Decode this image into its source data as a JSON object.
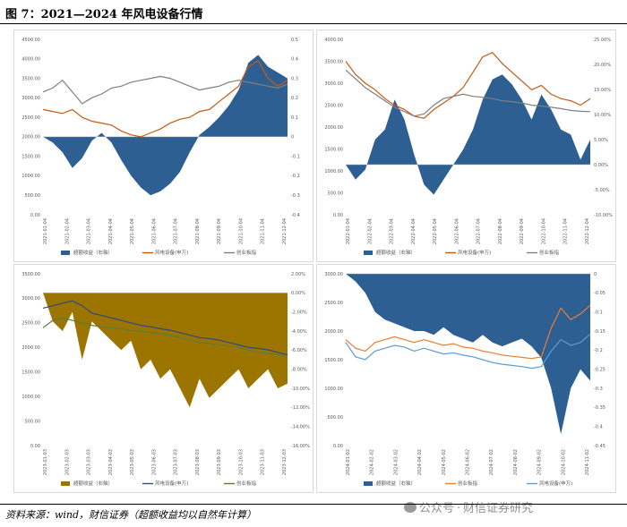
{
  "figure": {
    "title": "图 7：2021—2024 年风电设备行情",
    "source": "资料来源：wind，财信证券（超额收益均以自然年计算）",
    "watermark": {
      "platform": "公众号",
      "separator": "·",
      "name": "财信证券研究"
    }
  },
  "chart_data": [
    {
      "type": "area+line",
      "panel": "2021",
      "left_ticks": [
        "4500.00",
        "4000.00",
        "3500.00",
        "3000.00",
        "2500.00",
        "2000.00",
        "1500.00",
        "1000.00",
        "500.00",
        "0.00"
      ],
      "right_ticks": [
        "0.5",
        "0.4",
        "0.3",
        "0.2",
        "0.1",
        "0",
        "-0.1",
        "-0.2",
        "-0.3",
        "-0.4"
      ],
      "left_range": [
        0,
        4500
      ],
      "right_range": [
        -0.4,
        0.5
      ],
      "x_labels": [
        "2021-01-04",
        "2021-02-04",
        "2021-03-04",
        "2021-04-04",
        "2021-05-04",
        "2021-06-04",
        "2021-07-04",
        "2021-08-04",
        "2021-09-04",
        "2021-10-04",
        "2021-11-04",
        "2021-12-04"
      ],
      "x": [
        0,
        0.04,
        0.08,
        0.12,
        0.16,
        0.2,
        0.24,
        0.28,
        0.32,
        0.36,
        0.4,
        0.44,
        0.48,
        0.52,
        0.56,
        0.6,
        0.64,
        0.68,
        0.72,
        0.76,
        0.8,
        0.84,
        0.88,
        0.92,
        0.96,
        1.0
      ],
      "series": [
        {
          "name": "超额收益（右轴）",
          "axis": "right",
          "kind": "area",
          "color": "#2e5f93",
          "values": [
            0,
            -0.03,
            -0.08,
            -0.16,
            -0.11,
            -0.02,
            0.02,
            -0.03,
            -0.12,
            -0.2,
            -0.26,
            -0.3,
            -0.28,
            -0.24,
            -0.18,
            -0.08,
            0.01,
            0.05,
            0.1,
            0.16,
            0.24,
            0.38,
            0.42,
            0.36,
            0.33,
            0.3
          ]
        },
        {
          "name": "风电设备(申万)",
          "axis": "left",
          "kind": "line",
          "color": "#c55a11",
          "values": [
            2700,
            2650,
            2600,
            2700,
            2500,
            2400,
            2350,
            2300,
            2150,
            2050,
            2000,
            2100,
            2200,
            2350,
            2450,
            2500,
            2650,
            2700,
            2900,
            3100,
            3300,
            3800,
            3950,
            3500,
            3300,
            3450
          ]
        },
        {
          "name": "创业板指",
          "axis": "left",
          "kind": "line",
          "color": "#7f7f7f",
          "values": [
            3150,
            3250,
            3450,
            3150,
            2850,
            3000,
            3100,
            3250,
            3300,
            3400,
            3450,
            3500,
            3550,
            3500,
            3400,
            3300,
            3200,
            3250,
            3300,
            3400,
            3450,
            3400,
            3350,
            3300,
            3250,
            3350
          ]
        }
      ]
    },
    {
      "type": "area+line",
      "panel": "2022",
      "left_ticks": [
        "4000.00",
        "3500.00",
        "3000.00",
        "2500.00",
        "2000.00",
        "1500.00",
        "1000.00",
        "500.00",
        "0.00"
      ],
      "right_ticks": [
        "25.00%",
        "20.00%",
        "15.00%",
        "10.00%",
        "5.00%",
        "0.00%",
        "-5.00%",
        "-10.00%"
      ],
      "left_range": [
        0,
        4000
      ],
      "right_range": [
        -10,
        25
      ],
      "x_labels": [
        "2022-01-04",
        "2022-02-04",
        "2022-03-04",
        "2022-04-04",
        "2022-05-04",
        "2022-06-04",
        "2022-07-04",
        "2022-08-04",
        "2022-09-04",
        "2022-10-04",
        "2022-11-04",
        "2022-12-04"
      ],
      "x": [
        0,
        0.04,
        0.08,
        0.12,
        0.16,
        0.2,
        0.24,
        0.28,
        0.32,
        0.36,
        0.4,
        0.44,
        0.48,
        0.52,
        0.56,
        0.6,
        0.64,
        0.68,
        0.72,
        0.76,
        0.8,
        0.84,
        0.88,
        0.92,
        0.96,
        1.0
      ],
      "series": [
        {
          "name": "超额收益（右轴）",
          "axis": "right",
          "kind": "area",
          "color": "#2e5f93",
          "values": [
            0,
            -3,
            -1,
            5,
            7,
            13,
            9,
            2,
            -4,
            -6,
            -3,
            0,
            3,
            7,
            13,
            17,
            18,
            16,
            13,
            9,
            14,
            11,
            7,
            6,
            1,
            5
          ]
        },
        {
          "name": "风电设备(申万)",
          "axis": "left",
          "kind": "line",
          "color": "#c55a11",
          "values": [
            3500,
            3200,
            3000,
            2850,
            2650,
            2500,
            2400,
            2250,
            2200,
            2400,
            2550,
            2700,
            2900,
            3250,
            3600,
            3700,
            3450,
            3250,
            3050,
            2850,
            2950,
            2750,
            2650,
            2600,
            2500,
            2650
          ]
        },
        {
          "name": "创业板指",
          "axis": "left",
          "kind": "line",
          "color": "#7f7f7f",
          "values": [
            3300,
            3100,
            2900,
            2750,
            2600,
            2450,
            2350,
            2250,
            2300,
            2500,
            2650,
            2700,
            2750,
            2700,
            2680,
            2650,
            2600,
            2580,
            2550,
            2500,
            2480,
            2450,
            2420,
            2380,
            2360,
            2350
          ]
        }
      ]
    },
    {
      "type": "area+line",
      "panel": "2023",
      "left_ticks": [
        "3500.00",
        "3000.00",
        "2500.00",
        "2000.00",
        "1500.00",
        "1000.00",
        "500.00",
        "0.00"
      ],
      "right_ticks": [
        "2.00%",
        "0.00%",
        "-2.00%",
        "-4.00%",
        "-6.00%",
        "-8.00%",
        "-10.00%",
        "-12.00%",
        "-14.00%",
        "-16.00%"
      ],
      "left_range": [
        0,
        3500
      ],
      "right_range": [
        -16,
        2
      ],
      "x_labels": [
        "2023-01-03",
        "2023-02-03",
        "2023-03-03",
        "2023-04-03",
        "2023-05-03",
        "2023-06-03",
        "2023-07-03",
        "2023-08-03",
        "2023-09-03",
        "2023-10-03",
        "2023-11-03",
        "2023-12-03"
      ],
      "x": [
        0,
        0.04,
        0.08,
        0.12,
        0.16,
        0.2,
        0.24,
        0.28,
        0.32,
        0.36,
        0.4,
        0.44,
        0.48,
        0.52,
        0.56,
        0.6,
        0.64,
        0.68,
        0.72,
        0.76,
        0.8,
        0.84,
        0.88,
        0.92,
        0.96,
        1.0
      ],
      "series": [
        {
          "name": "超额收益（右轴）",
          "axis": "right",
          "kind": "area",
          "color": "#9c7400",
          "values": [
            0,
            -3,
            -4,
            -2,
            -7,
            -3,
            -4,
            -5,
            -6,
            -5,
            -8,
            -7,
            -9,
            -8,
            -10,
            -12,
            -9,
            -11,
            -10,
            -9,
            -8,
            -10,
            -9,
            -8,
            -10,
            -9.5
          ]
        },
        {
          "name": "风电设备(申万)",
          "axis": "left",
          "kind": "line",
          "color": "#2f4b7c",
          "values": [
            2800,
            2850,
            2900,
            2950,
            2850,
            2700,
            2650,
            2600,
            2550,
            2500,
            2450,
            2420,
            2380,
            2350,
            2300,
            2250,
            2200,
            2180,
            2150,
            2100,
            2050,
            2000,
            1980,
            1950,
            1900,
            1850
          ]
        },
        {
          "name": "创业板指",
          "axis": "left",
          "kind": "line",
          "color": "#5a7d3a",
          "values": [
            2400,
            2550,
            2600,
            2550,
            2500,
            2450,
            2420,
            2400,
            2380,
            2350,
            2330,
            2300,
            2280,
            2250,
            2200,
            2150,
            2100,
            2080,
            2050,
            2020,
            2000,
            1950,
            1900,
            1880,
            1850,
            1820
          ]
        }
      ]
    },
    {
      "type": "area+line",
      "panel": "2024",
      "left_ticks": [
        "3000.00",
        "2500.00",
        "2000.00",
        "1500.00",
        "1000.00",
        "500.00",
        "0.00"
      ],
      "right_ticks": [
        "0",
        "-0.05",
        "-0.1",
        "-0.15",
        "-0.2",
        "-0.25",
        "-0.3",
        "-0.35",
        "-0.4",
        "-0.45"
      ],
      "left_range": [
        0,
        3000
      ],
      "right_range": [
        -0.45,
        0
      ],
      "x_labels": [
        "2024-01-02",
        "2024-02-02",
        "2024-03-02",
        "2024-04-02",
        "2024-05-02",
        "2024-06-02",
        "2024-07-02",
        "2024-08-02",
        "2024-09-02",
        "2024-10-02",
        "2024-11-02"
      ],
      "x": [
        0,
        0.04,
        0.08,
        0.12,
        0.16,
        0.2,
        0.24,
        0.28,
        0.32,
        0.36,
        0.4,
        0.44,
        0.48,
        0.52,
        0.56,
        0.6,
        0.64,
        0.68,
        0.72,
        0.76,
        0.8,
        0.84,
        0.88,
        0.92,
        0.96,
        1.0
      ],
      "series": [
        {
          "name": "超额收益（右轴）",
          "axis": "right",
          "kind": "area",
          "color": "#2e5f93",
          "values": [
            0,
            -0.02,
            -0.05,
            -0.1,
            -0.12,
            -0.13,
            -0.14,
            -0.15,
            -0.15,
            -0.16,
            -0.14,
            -0.16,
            -0.17,
            -0.18,
            -0.16,
            -0.18,
            -0.19,
            -0.18,
            -0.17,
            -0.19,
            -0.22,
            -0.3,
            -0.42,
            -0.3,
            -0.25,
            -0.28
          ]
        },
        {
          "name": "创业板指",
          "axis": "left",
          "kind": "line",
          "color": "#ed7d31",
          "values": [
            1850,
            1700,
            1650,
            1800,
            1850,
            1900,
            1850,
            1800,
            1850,
            1800,
            1750,
            1780,
            1720,
            1700,
            1650,
            1620,
            1580,
            1560,
            1540,
            1520,
            1550,
            2050,
            2400,
            2200,
            2300,
            2450
          ]
        },
        {
          "name": "风电设备(申万)",
          "axis": "left",
          "kind": "line",
          "color": "#5b9bd5",
          "values": [
            1800,
            1550,
            1500,
            1650,
            1700,
            1750,
            1720,
            1650,
            1700,
            1650,
            1600,
            1620,
            1580,
            1550,
            1500,
            1450,
            1420,
            1400,
            1380,
            1350,
            1380,
            1650,
            1850,
            1750,
            1800,
            1950
          ]
        }
      ]
    }
  ]
}
